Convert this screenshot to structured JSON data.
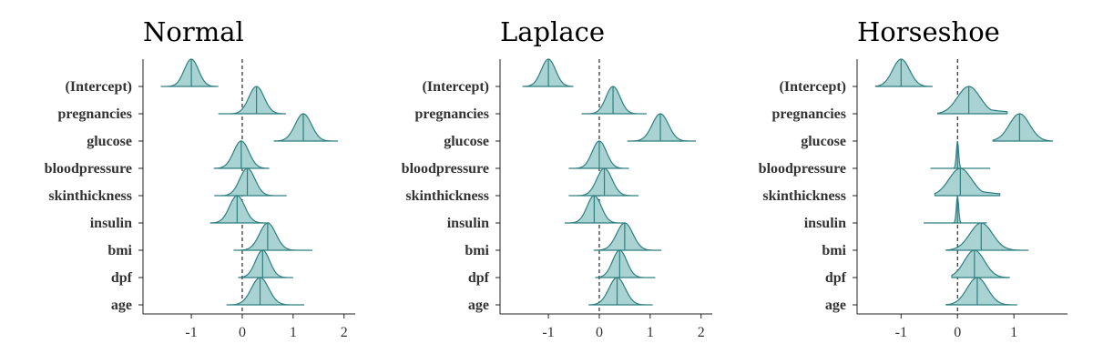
{
  "chart_data": [
    {
      "type": "ridgeline",
      "title": "Normal",
      "categories": [
        "(Intercept)",
        "pregnancies",
        "glucose",
        "bloodpressure",
        "skinthickness",
        "insulin",
        "bmi",
        "dpf",
        "age"
      ],
      "xlim": [
        -1.95,
        2.22
      ],
      "xticks": [
        -1,
        0,
        1,
        2
      ],
      "zero_line": 0,
      "series": [
        {
          "name": "(Intercept)",
          "median": -1.0,
          "sd": 0.14,
          "range": [
            -1.6,
            -0.48
          ],
          "skew": 0
        },
        {
          "name": "pregnancies",
          "median": 0.28,
          "sd": 0.15,
          "range": [
            -0.47,
            0.85
          ],
          "skew": 0
        },
        {
          "name": "glucose",
          "median": 1.2,
          "sd": 0.16,
          "range": [
            0.63,
            1.88
          ],
          "skew": 0
        },
        {
          "name": "bloodpressure",
          "median": -0.02,
          "sd": 0.15,
          "range": [
            -0.55,
            0.52
          ],
          "skew": 0
        },
        {
          "name": "skinthickness",
          "median": 0.1,
          "sd": 0.15,
          "range": [
            -0.55,
            0.87
          ],
          "skew": 0
        },
        {
          "name": "insulin",
          "median": -0.1,
          "sd": 0.15,
          "range": [
            -0.62,
            0.52
          ],
          "skew": 0
        },
        {
          "name": "bmi",
          "median": 0.5,
          "sd": 0.16,
          "range": [
            -0.17,
            1.38
          ],
          "skew": 0
        },
        {
          "name": "dpf",
          "median": 0.4,
          "sd": 0.14,
          "range": [
            -0.07,
            1.0
          ],
          "skew": 0
        },
        {
          "name": "age",
          "median": 0.35,
          "sd": 0.17,
          "range": [
            -0.3,
            1.22
          ],
          "skew": 0
        }
      ]
    },
    {
      "type": "ridgeline",
      "title": "Laplace",
      "categories": [
        "(Intercept)",
        "pregnancies",
        "glucose",
        "bloodpressure",
        "skinthickness",
        "insulin",
        "bmi",
        "dpf",
        "age"
      ],
      "xlim": [
        -1.95,
        2.22
      ],
      "xticks": [
        -1,
        0,
        1,
        2
      ],
      "zero_line": 0,
      "series": [
        {
          "name": "(Intercept)",
          "median": -1.0,
          "sd": 0.14,
          "range": [
            -1.5,
            -0.52
          ],
          "skew": 0
        },
        {
          "name": "pregnancies",
          "median": 0.27,
          "sd": 0.14,
          "range": [
            -0.35,
            0.93
          ],
          "skew": 0
        },
        {
          "name": "glucose",
          "median": 1.2,
          "sd": 0.16,
          "range": [
            0.56,
            1.9
          ],
          "skew": 0
        },
        {
          "name": "bloodpressure",
          "median": 0.0,
          "sd": 0.14,
          "range": [
            -0.6,
            0.57
          ],
          "skew": 0
        },
        {
          "name": "skinthickness",
          "median": 0.1,
          "sd": 0.15,
          "range": [
            -0.6,
            0.77
          ],
          "skew": 0
        },
        {
          "name": "insulin",
          "median": -0.1,
          "sd": 0.14,
          "range": [
            -0.67,
            0.52
          ],
          "skew": 0
        },
        {
          "name": "bmi",
          "median": 0.5,
          "sd": 0.16,
          "range": [
            -0.1,
            1.22
          ],
          "skew": 0
        },
        {
          "name": "dpf",
          "median": 0.4,
          "sd": 0.14,
          "range": [
            -0.07,
            1.1
          ],
          "skew": 0
        },
        {
          "name": "age",
          "median": 0.35,
          "sd": 0.16,
          "range": [
            -0.2,
            1.05
          ],
          "skew": 0
        }
      ]
    },
    {
      "type": "ridgeline",
      "title": "Horseshoe",
      "categories": [
        "(Intercept)",
        "pregnancies",
        "glucose",
        "bloodpressure",
        "skinthickness",
        "insulin",
        "bmi",
        "dpf",
        "age"
      ],
      "xlim": [
        -1.78,
        1.95
      ],
      "xticks": [
        -1,
        0,
        1
      ],
      "zero_line": 0,
      "series": [
        {
          "name": "(Intercept)",
          "median": -1.0,
          "sd": 0.15,
          "range": [
            -1.45,
            -0.45
          ],
          "skew": 0
        },
        {
          "name": "pregnancies",
          "median": 0.2,
          "sd": 0.2,
          "range": [
            -0.35,
            0.88
          ],
          "skew": 1
        },
        {
          "name": "glucose",
          "median": 1.1,
          "sd": 0.18,
          "range": [
            0.63,
            1.68
          ],
          "skew": 0
        },
        {
          "name": "bloodpressure",
          "median": 0.0,
          "sd": 0.02,
          "range": [
            -0.48,
            0.58
          ],
          "skew": 0
        },
        {
          "name": "skinthickness",
          "median": 0.05,
          "sd": 0.2,
          "range": [
            -0.4,
            0.75
          ],
          "skew": 1
        },
        {
          "name": "insulin",
          "median": 0.0,
          "sd": 0.02,
          "range": [
            -0.6,
            0.52
          ],
          "skew": 0
        },
        {
          "name": "bmi",
          "median": 0.42,
          "sd": 0.2,
          "range": [
            -0.2,
            1.25
          ],
          "skew": 0
        },
        {
          "name": "dpf",
          "median": 0.3,
          "sd": 0.18,
          "range": [
            -0.1,
            0.92
          ],
          "skew": 0
        },
        {
          "name": "age",
          "median": 0.35,
          "sd": 0.18,
          "range": [
            -0.2,
            1.05
          ],
          "skew": 0
        }
      ]
    }
  ]
}
